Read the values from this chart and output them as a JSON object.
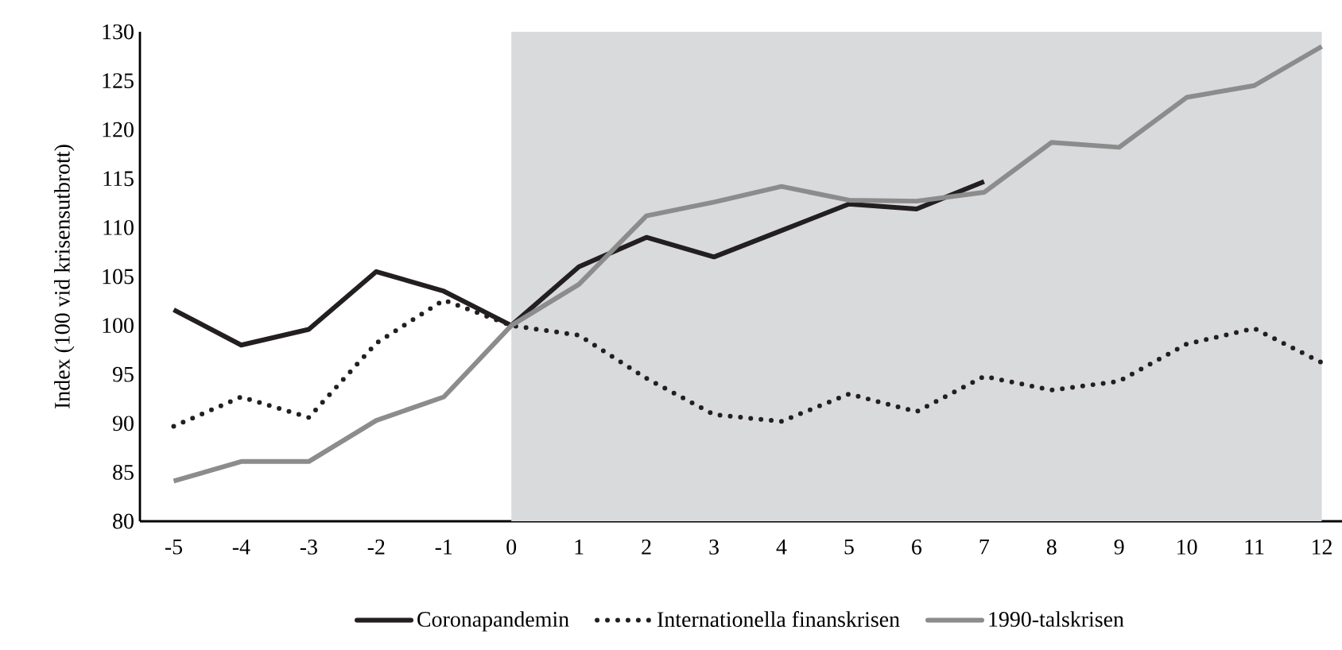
{
  "chart_data": {
    "type": "line",
    "ylabel": "Index (100 vid krisensutbrott)",
    "x": [
      -5,
      -4,
      -3,
      -2,
      -1,
      0,
      1,
      2,
      3,
      4,
      5,
      6,
      7,
      8,
      9,
      10,
      11,
      12
    ],
    "series": [
      {
        "name": "Coronapandemin",
        "color": "#231f20",
        "line_style": "solid",
        "values": [
          101.6,
          98.0,
          99.6,
          105.5,
          103.5,
          100,
          106.0,
          109.0,
          107.0,
          109.7,
          112.4,
          111.9,
          114.7,
          null,
          null,
          null,
          null,
          null
        ]
      },
      {
        "name": "Internationella finanskrisen",
        "color": "#231f20",
        "line_style": "dotted",
        "values": [
          89.7,
          92.7,
          90.6,
          98.2,
          102.6,
          100,
          99.0,
          94.6,
          90.9,
          90.2,
          93.0,
          91.2,
          94.8,
          93.4,
          94.3,
          98.1,
          99.7,
          96.2
        ]
      },
      {
        "name": "1990-talskrisen",
        "color": "#8c8c8c",
        "line_style": "solid",
        "values": [
          84.1,
          86.1,
          86.1,
          90.3,
          92.7,
          100,
          104.2,
          111.2,
          112.6,
          114.2,
          112.8,
          112.7,
          113.6,
          118.7,
          118.2,
          123.3,
          124.5,
          128.5
        ]
      }
    ],
    "xlim": [
      -5.5,
      12.3
    ],
    "ylim": [
      80,
      130
    ],
    "xticks": [
      -5,
      -4,
      -3,
      -2,
      -1,
      0,
      1,
      2,
      3,
      4,
      5,
      6,
      7,
      8,
      9,
      10,
      11,
      12
    ],
    "yticks": [
      80,
      85,
      90,
      95,
      100,
      105,
      110,
      115,
      120,
      125,
      130
    ],
    "bands": [
      {
        "axis": "x",
        "from": 0,
        "to": 12,
        "color": "#d9dadb"
      }
    ],
    "legend": "bottom",
    "grid": false
  }
}
